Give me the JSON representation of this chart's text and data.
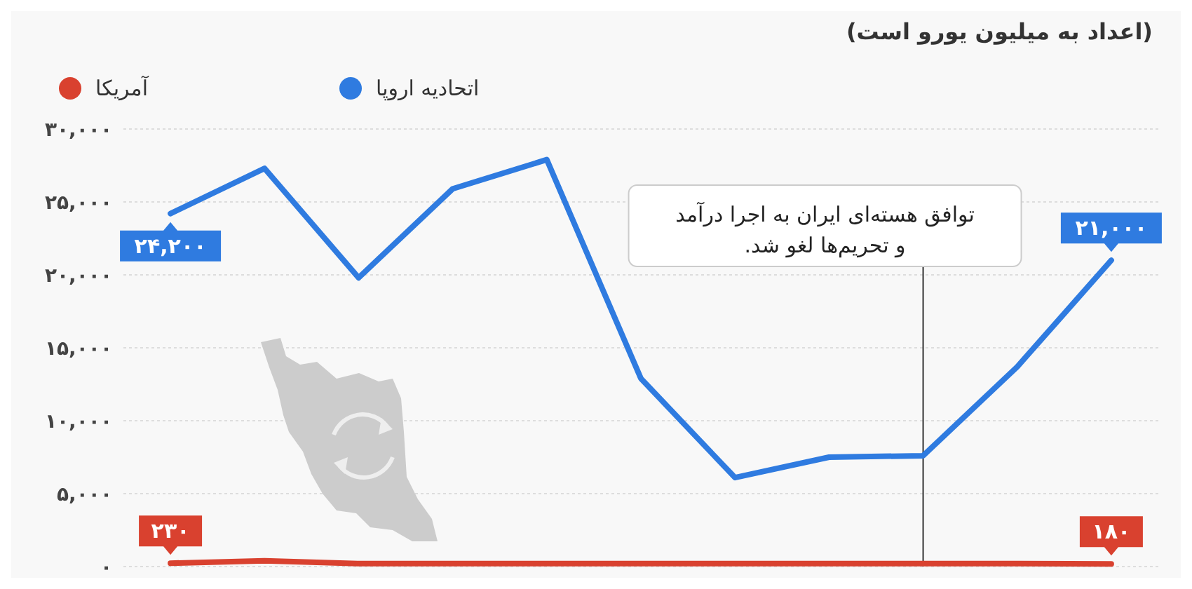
{
  "chart_data": {
    "type": "line",
    "subtitle": "(اعداد به میلیون یورو است)",
    "categories": [
      null,
      null,
      null,
      null,
      null,
      null,
      null,
      null,
      null,
      null,
      null
    ],
    "series": [
      {
        "name": "اتحادیه اروپا",
        "color": "#2f7be0",
        "values": [
          24200,
          27300,
          19800,
          25900,
          27900,
          12900,
          6100,
          7500,
          7600,
          13700,
          21000
        ],
        "value_labels": [
          "۲۴,۲۰۰",
          null,
          null,
          null,
          null,
          null,
          null,
          null,
          null,
          null,
          "۲۱,۰۰۰"
        ]
      },
      {
        "name": "آمریکا",
        "color": "#d9412f",
        "values": [
          230,
          400,
          200,
          200,
          200,
          200,
          200,
          200,
          200,
          200,
          180
        ],
        "value_labels": [
          "۲۳۰",
          null,
          null,
          null,
          null,
          null,
          null,
          null,
          null,
          null,
          "۱۸۰"
        ]
      }
    ],
    "ylim": [
      0,
      30000
    ],
    "yticks": [
      {
        "value": 0,
        "label": "۰"
      },
      {
        "value": 5000,
        "label": "۵,۰۰۰"
      },
      {
        "value": 10000,
        "label": "۱۰,۰۰۰"
      },
      {
        "value": 15000,
        "label": "۱۵,۰۰۰"
      },
      {
        "value": 20000,
        "label": "۲۰,۰۰۰"
      },
      {
        "value": 25000,
        "label": "۲۵,۰۰۰"
      },
      {
        "value": 30000,
        "label": "۳۰,۰۰۰"
      }
    ],
    "grid": "y",
    "legend": "top",
    "marker": "none",
    "line_style": "solid",
    "tick_labels": "y",
    "annotations": [
      "توافق هسته‌ای ایران به اجرا درآمد\nو تحریم‌ها لغو شد."
    ]
  }
}
